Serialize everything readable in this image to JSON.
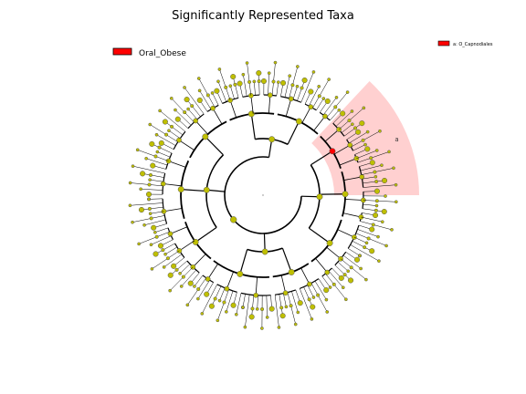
{
  "chart_data": {
    "type": "cladogram",
    "title": "Significantly Represented Taxa",
    "legend_main": {
      "label": "Oral_Obese",
      "color": "#ff0000"
    },
    "legend_minor": {
      "label": "a: O_Capnodiales",
      "color": "#ff0000"
    },
    "highlighted_clade": {
      "label": "a",
      "color": "#ff0000",
      "shade": "#ffc8c8"
    },
    "node_color": "#bfbf00",
    "highlight_node_color": "#ff0000",
    "leaf_count": 148,
    "clades": [
      {
        "leaves": 12,
        "sub": [
          5,
          4,
          3
        ]
      },
      {
        "leaves": 14,
        "sub": [
          6,
          5,
          3
        ]
      },
      {
        "leaves": 16,
        "sub": [
          7,
          5,
          4
        ]
      },
      {
        "leaves": 12,
        "sub": [
          6,
          6
        ]
      },
      {
        "leaves": 18,
        "sub": [
          8,
          6,
          4
        ]
      },
      {
        "leaves": 14,
        "sub": [
          5,
          5,
          4
        ]
      },
      {
        "leaves": 18,
        "sub": [
          7,
          6,
          5
        ]
      },
      {
        "leaves": 16,
        "sub": [
          6,
          6,
          4
        ]
      },
      {
        "leaves": 14,
        "sub": [
          5,
          5,
          4
        ]
      },
      {
        "leaves": 14,
        "sub": [
          6,
          4,
          4
        ]
      }
    ]
  }
}
